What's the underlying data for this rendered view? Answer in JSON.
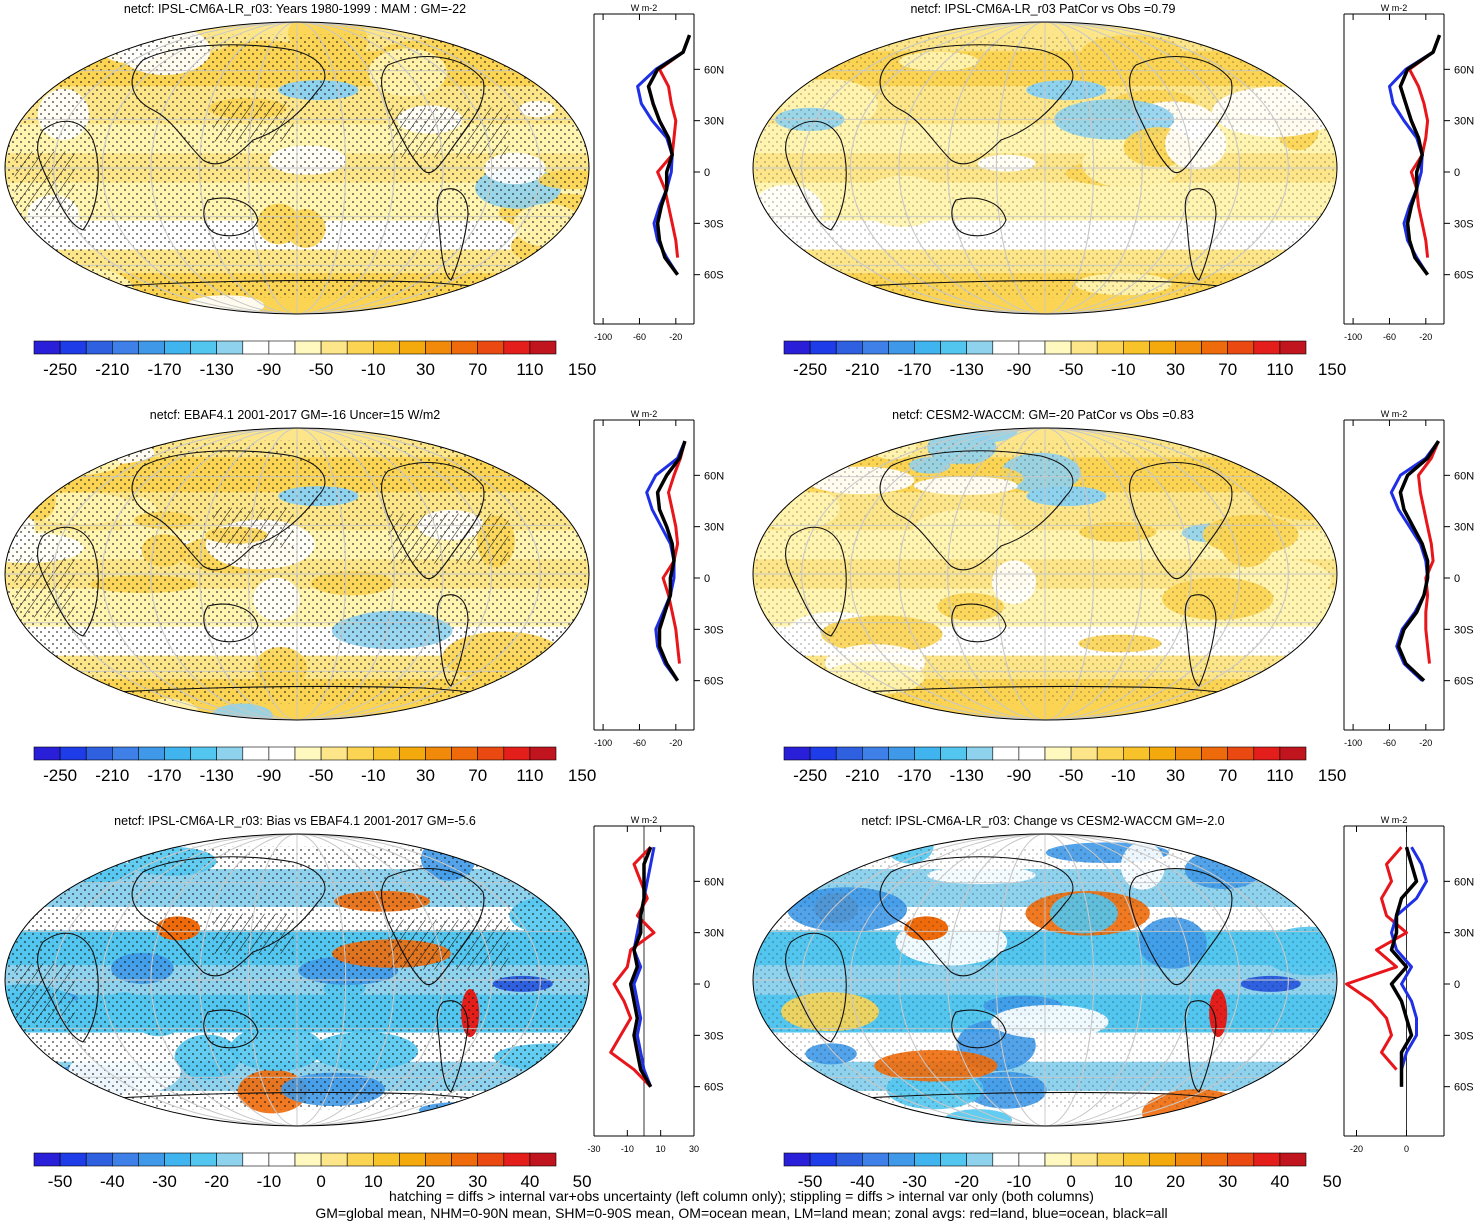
{
  "footer": {
    "line1": "hatching = diffs > internal var+obs uncertainty (left column only); stippling = diffs > internal var only (both columns)",
    "line2": "GM=global mean, NHM=0-90N mean, SHM=0-90S mean, OM=ocean mean, LM=land mean; zonal avgs: red=land, blue=ocean, black=all"
  },
  "colors": {
    "land": "#e8151b",
    "ocean": "#1f2fe6",
    "all": "#000000",
    "colorbar_abs": [
      "#2a1fd8",
      "#1e3ce8",
      "#2e60e0",
      "#3e80e8",
      "#3f99e8",
      "#3fb4ee",
      "#52c6ef",
      "#8fd2ee",
      "#ffffff",
      "#ffffff",
      "#fff9c0",
      "#fde68a",
      "#fbd453",
      "#f7c22a",
      "#f4a90c",
      "#f18a0b",
      "#ee6a0a",
      "#ea4a12",
      "#e41f1b",
      "#c0141e"
    ],
    "colorbar_diff": [
      "#2a1fd8",
      "#1e3ce8",
      "#2e60e0",
      "#3e80e8",
      "#3f99e8",
      "#3fb4ee",
      "#52c6ef",
      "#8fd2ee",
      "#ffffff",
      "#ffffff",
      "#fff9c0",
      "#fde68a",
      "#fbd453",
      "#f7c22a",
      "#f4a90c",
      "#f18a0b",
      "#ee6a0a",
      "#ea4a12",
      "#e41f1b",
      "#c0141e"
    ]
  },
  "chart_data": [
    {
      "type": "heatmap",
      "title": "netcf: IPSL-CM6A-LR_r03: Years 1980-1999 : MAM : GM=-22",
      "colorbar_labels": [
        "-250",
        "-210",
        "-170",
        "-130",
        "-90",
        "-50",
        "-10",
        "30",
        "70",
        "110",
        "150"
      ],
      "zonal": {
        "unit": "W m-2",
        "xticks": [
          "-100",
          "-60",
          "-20"
        ],
        "yticks": [
          "60N",
          "30N",
          "0",
          "30S",
          "60S"
        ],
        "lat": [
          80,
          70,
          60,
          50,
          40,
          30,
          20,
          10,
          0,
          -10,
          -20,
          -30,
          -40,
          -50,
          -60,
          -70
        ],
        "land": [
          -5,
          -12,
          -38,
          -28,
          -25,
          -20,
          -22,
          -24,
          -40,
          -32,
          -28,
          -24,
          -20,
          -18,
          null,
          null
        ],
        "ocean": [
          -5,
          -12,
          -42,
          -62,
          -58,
          -46,
          -30,
          -24,
          -25,
          -30,
          -38,
          -44,
          -40,
          -30,
          -18,
          null
        ],
        "all": [
          -5,
          -12,
          -40,
          -50,
          -45,
          -38,
          -28,
          -24,
          -30,
          -30,
          -36,
          -40,
          -38,
          -32,
          -18,
          null
        ]
      }
    },
    {
      "type": "heatmap",
      "title": "netcf: IPSL-CM6A-LR_r03 PatCor vs Obs =0.79",
      "colorbar_labels": [
        "-250",
        "-210",
        "-170",
        "-130",
        "-90",
        "-50",
        "-10",
        "30",
        "70",
        "110",
        "150"
      ],
      "zonal": {
        "unit": "W m-2",
        "xticks": [
          "-100",
          "-60",
          "-20"
        ],
        "yticks": [
          "60N",
          "30N",
          "0",
          "30S",
          "60S"
        ],
        "lat": [
          80,
          70,
          60,
          50,
          40,
          30,
          20,
          10,
          0,
          -10,
          -20,
          -30,
          -40,
          -50,
          -60,
          -70
        ],
        "land": [
          -5,
          -12,
          -38,
          -28,
          -22,
          -18,
          -20,
          -24,
          -36,
          -30,
          -28,
          -24,
          -20,
          -18,
          null,
          null
        ],
        "ocean": [
          -5,
          -12,
          -42,
          -60,
          -56,
          -44,
          -30,
          -24,
          -25,
          -30,
          -38,
          -44,
          -40,
          -30,
          -18,
          null
        ],
        "all": [
          -5,
          -12,
          -40,
          -48,
          -42,
          -36,
          -28,
          -24,
          -30,
          -30,
          -36,
          -40,
          -38,
          -32,
          -18,
          null
        ]
      }
    },
    {
      "type": "heatmap",
      "title": "netcf: EBAF4.1 2001-2017 GM=-16 Uncer=15 W/m2",
      "colorbar_labels": [
        "-250",
        "-210",
        "-170",
        "-130",
        "-90",
        "-50",
        "-10",
        "30",
        "70",
        "110",
        "150"
      ],
      "zonal": {
        "unit": "W m-2",
        "xticks": [
          "-100",
          "-60",
          "-20"
        ],
        "yticks": [
          "60N",
          "30N",
          "0",
          "30S",
          "60S"
        ],
        "lat": [
          80,
          70,
          60,
          50,
          40,
          30,
          20,
          10,
          0,
          -10,
          -20,
          -30,
          -40,
          -50,
          -60,
          -70
        ],
        "land": [
          -10,
          -15,
          -22,
          -28,
          -24,
          -20,
          -18,
          -22,
          -34,
          -28,
          -24,
          -20,
          -18,
          -16,
          null,
          null
        ],
        "ocean": [
          -10,
          -18,
          -42,
          -52,
          -46,
          -36,
          -26,
          -22,
          -22,
          -26,
          -34,
          -42,
          -40,
          -32,
          -18,
          null
        ],
        "all": [
          -10,
          -16,
          -30,
          -40,
          -38,
          -30,
          -24,
          -22,
          -26,
          -26,
          -32,
          -38,
          -38,
          -30,
          -18,
          null
        ]
      }
    },
    {
      "type": "heatmap",
      "title": "netcf: CESM2-WACCM: GM=-20 PatCor vs Obs =0.83",
      "colorbar_labels": [
        "-250",
        "-210",
        "-170",
        "-130",
        "-90",
        "-50",
        "-10",
        "30",
        "70",
        "110",
        "150"
      ],
      "zonal": {
        "unit": "W m-2",
        "xticks": [
          "-100",
          "-60",
          "-20"
        ],
        "yticks": [
          "60N",
          "30N",
          "0",
          "30S",
          "60S"
        ],
        "lat": [
          80,
          70,
          60,
          50,
          40,
          30,
          20,
          10,
          0,
          -10,
          -20,
          -30,
          -40,
          -50,
          -60,
          -70
        ],
        "land": [
          -6,
          -14,
          -28,
          -26,
          -22,
          -18,
          -14,
          -12,
          -20,
          -18,
          -20,
          -20,
          -18,
          -16,
          null,
          null
        ],
        "ocean": [
          -6,
          -20,
          -48,
          -58,
          -50,
          -38,
          -26,
          -20,
          -18,
          -22,
          -32,
          -46,
          -52,
          -44,
          -24,
          null
        ],
        "all": [
          -6,
          -18,
          -40,
          -48,
          -44,
          -34,
          -24,
          -18,
          -18,
          -22,
          -30,
          -44,
          -50,
          -42,
          -22,
          null
        ]
      }
    },
    {
      "type": "heatmap",
      "title": "netcf: IPSL-CM6A-LR_r03: Bias vs EBAF4.1 2001-2017 GM=-5.6",
      "colorbar_labels": [
        "-50",
        "-40",
        "-30",
        "-20",
        "-10",
        "0",
        "10",
        "20",
        "30",
        "40",
        "50"
      ],
      "zonal": {
        "unit": "W m-2",
        "xticks": [
          "-30",
          "-10",
          "10",
          "30"
        ],
        "yticks": [
          "60N",
          "30N",
          "0",
          "30S",
          "60S"
        ],
        "lat": [
          80,
          70,
          60,
          50,
          40,
          30,
          20,
          10,
          0,
          -10,
          -20,
          -30,
          -40,
          -50,
          -60,
          -70
        ],
        "land": [
          4,
          -6,
          -2,
          2,
          -4,
          6,
          -8,
          -10,
          -18,
          -12,
          -8,
          -14,
          -20,
          -6,
          4,
          null
        ],
        "ocean": [
          6,
          4,
          2,
          0,
          -2,
          -4,
          -6,
          -2,
          -6,
          -4,
          -2,
          -4,
          -2,
          0,
          4,
          null
        ],
        "all": [
          4,
          0,
          0,
          0,
          -2,
          -2,
          -6,
          -4,
          -8,
          -6,
          -4,
          -6,
          -4,
          -2,
          4,
          null
        ]
      }
    },
    {
      "type": "heatmap",
      "title": "netcf: IPSL-CM6A-LR_r03: Change vs CESM2-WACCM GM=-2.0",
      "colorbar_labels": [
        "-50",
        "-40",
        "-30",
        "-20",
        "-10",
        "0",
        "10",
        "20",
        "30",
        "40",
        "50"
      ],
      "zonal": {
        "unit": "W m-2",
        "xticks": [
          "-20",
          "0"
        ],
        "yticks": [
          "60N",
          "30N",
          "0",
          "30S",
          "60S"
        ],
        "lat": [
          80,
          70,
          60,
          50,
          40,
          30,
          20,
          10,
          0,
          -10,
          -20,
          -30,
          -40,
          -50,
          -60,
          -70
        ],
        "land": [
          -2,
          -8,
          -6,
          -10,
          -8,
          0,
          -12,
          -4,
          -24,
          -14,
          -8,
          -6,
          -10,
          -4,
          null,
          null
        ],
        "ocean": [
          2,
          6,
          8,
          4,
          -4,
          -6,
          -4,
          2,
          -2,
          2,
          4,
          4,
          0,
          -2,
          -2,
          null
        ],
        "all": [
          0,
          2,
          4,
          -2,
          -4,
          -4,
          -6,
          0,
          -6,
          -2,
          0,
          2,
          -2,
          -2,
          -2,
          null
        ]
      }
    }
  ]
}
